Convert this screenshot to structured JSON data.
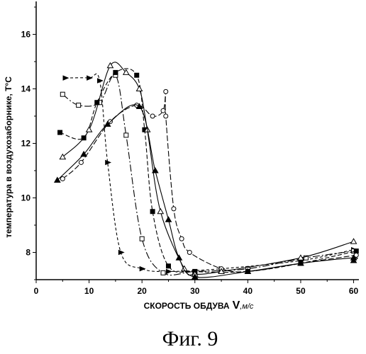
{
  "chart_data": {
    "type": "line",
    "title": "",
    "caption": "Фиг. 9",
    "ylabel": "температура в воздухозаборнике, Т°С",
    "xlabel_main": "СКОРОСТЬ ОБДУВА",
    "xlabel_var": "V",
    "xlabel_unit": ",м/с",
    "xlim": [
      0,
      61
    ],
    "ylim": [
      7,
      17
    ],
    "x_ticks": [
      0,
      10,
      20,
      30,
      40,
      50,
      60
    ],
    "y_ticks": [
      8,
      10,
      12,
      14,
      16
    ],
    "grid": false,
    "series": [
      {
        "marker": "right-triangle",
        "dash": "4 3",
        "points": [
          [
            5.5,
            14.4
          ],
          [
            10,
            14.4
          ],
          [
            12,
            14.3
          ],
          [
            13.5,
            11.3
          ],
          [
            16,
            8
          ],
          [
            20,
            7.4
          ],
          [
            25,
            7.3
          ],
          [
            35,
            7.4
          ],
          [
            50,
            7.7
          ],
          [
            60,
            8.1
          ]
        ]
      },
      {
        "marker": "open-square",
        "dash": "10 3 2 3",
        "points": [
          [
            5,
            13.8
          ],
          [
            8,
            13.4
          ],
          [
            12,
            13.5
          ],
          [
            15,
            14.5
          ],
          [
            17,
            12.3
          ],
          [
            20,
            8.5
          ],
          [
            24,
            7.25
          ],
          [
            30,
            7.3
          ],
          [
            40,
            7.4
          ],
          [
            51,
            7.8
          ],
          [
            60,
            8.05
          ]
        ]
      },
      {
        "marker": "filled-square",
        "dash": "6 3",
        "points": [
          [
            4.5,
            12.4
          ],
          [
            9,
            12.2
          ],
          [
            11.5,
            13.5
          ],
          [
            15,
            14.6
          ],
          [
            19,
            14.5
          ],
          [
            20.5,
            12.5
          ],
          [
            22,
            9.5
          ],
          [
            25,
            7.5
          ],
          [
            30,
            7.3
          ],
          [
            40,
            7.3
          ],
          [
            50,
            7.6
          ],
          [
            60.5,
            8.05
          ]
        ]
      },
      {
        "marker": "open-circle",
        "dash": "8 3",
        "points": [
          [
            5,
            10.7
          ],
          [
            8.5,
            11.3
          ],
          [
            14,
            12.8
          ],
          [
            19,
            13.4
          ],
          [
            22,
            13
          ],
          [
            24,
            13.2
          ],
          [
            24.5,
            13.9
          ],
          [
            24.5,
            13
          ],
          [
            26,
            9.6
          ],
          [
            27.5,
            8.5
          ],
          [
            29,
            8
          ],
          [
            35,
            7.4
          ],
          [
            40,
            7.3
          ],
          [
            50,
            7.6
          ],
          [
            60.5,
            7.9
          ]
        ]
      },
      {
        "marker": "open-triangle",
        "dash": "",
        "points": [
          [
            5,
            11.5
          ],
          [
            10,
            12.5
          ],
          [
            14,
            14.85
          ],
          [
            17,
            14.6
          ],
          [
            19.5,
            14
          ],
          [
            21,
            12.5
          ],
          [
            23.5,
            9.5
          ],
          [
            28,
            7.4
          ],
          [
            30,
            7.2
          ],
          [
            35,
            7.3
          ],
          [
            50,
            7.8
          ],
          [
            60,
            8.4
          ]
        ]
      },
      {
        "marker": "filled-triangle",
        "dash": "",
        "points": [
          [
            4,
            10.65
          ],
          [
            9,
            11.6
          ],
          [
            13.5,
            12.7
          ],
          [
            19.5,
            13.35
          ],
          [
            22.5,
            11
          ],
          [
            25,
            9.2
          ],
          [
            27,
            7.8
          ],
          [
            30,
            7.1
          ],
          [
            40,
            7.3
          ],
          [
            50,
            7.6
          ],
          [
            60,
            7.8
          ],
          [
            60,
            7.7
          ]
        ]
      }
    ]
  }
}
